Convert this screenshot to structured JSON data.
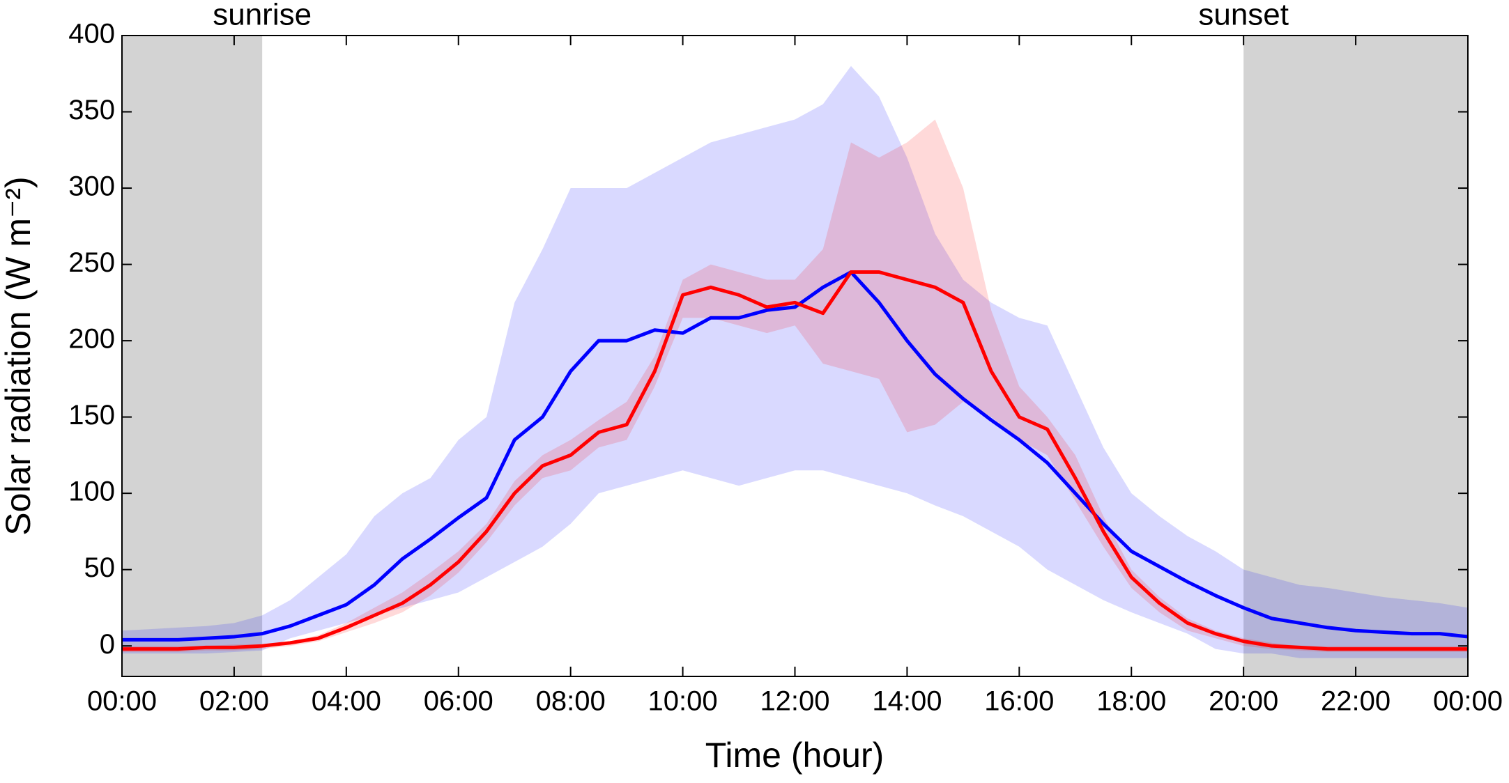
{
  "chart_data": {
    "type": "line",
    "xlabel": "Time (hour)",
    "ylabel": "Solar radiation (W m⁻²)",
    "xlim": [
      0,
      24
    ],
    "ylim": [
      -20,
      400
    ],
    "xticks": [
      {
        "value": 0,
        "label": "00:00"
      },
      {
        "value": 2,
        "label": "02:00"
      },
      {
        "value": 4,
        "label": "04:00"
      },
      {
        "value": 6,
        "label": "06:00"
      },
      {
        "value": 8,
        "label": "08:00"
      },
      {
        "value": 10,
        "label": "10:00"
      },
      {
        "value": 12,
        "label": "12:00"
      },
      {
        "value": 14,
        "label": "14:00"
      },
      {
        "value": 16,
        "label": "16:00"
      },
      {
        "value": 18,
        "label": "18:00"
      },
      {
        "value": 20,
        "label": "20:00"
      },
      {
        "value": 22,
        "label": "22:00"
      },
      {
        "value": 24,
        "label": "00:00"
      }
    ],
    "yticks": [
      0,
      50,
      100,
      150,
      200,
      250,
      300,
      350,
      400
    ],
    "shaded_regions": [
      {
        "x": [
          0,
          2.5
        ],
        "color": "#d3d3d3"
      },
      {
        "x": [
          20,
          24
        ],
        "color": "#d3d3d3"
      }
    ],
    "annotations": [
      {
        "text": "sunrise",
        "x": 2.5
      },
      {
        "text": "sunset",
        "x": 20
      }
    ],
    "x": [
      0,
      0.5,
      1,
      1.5,
      2,
      2.5,
      3,
      3.5,
      4,
      4.5,
      5,
      5.5,
      6,
      6.5,
      7,
      7.5,
      8,
      8.5,
      9,
      9.5,
      10,
      10.5,
      11,
      11.5,
      12,
      12.5,
      13,
      13.5,
      14,
      14.5,
      15,
      15.5,
      16,
      16.5,
      17,
      17.5,
      18,
      18.5,
      19,
      19.5,
      20,
      20.5,
      21,
      21.5,
      22,
      22.5,
      23,
      23.5,
      24
    ],
    "series": [
      {
        "color": "#0000ff",
        "band_color": "#0000ff",
        "values": [
          4,
          4,
          4,
          5,
          6,
          8,
          13,
          20,
          27,
          40,
          57,
          70,
          84,
          97,
          135,
          150,
          180,
          200,
          200,
          207,
          205,
          215,
          215,
          220,
          222,
          235,
          245,
          225,
          200,
          178,
          162,
          148,
          135,
          120,
          100,
          80,
          62,
          52,
          42,
          33,
          25,
          18,
          15,
          12,
          10,
          9,
          8,
          8,
          6
        ],
        "upper": [
          10,
          11,
          12,
          13,
          15,
          20,
          30,
          45,
          60,
          85,
          100,
          110,
          135,
          150,
          225,
          260,
          300,
          300,
          300,
          310,
          320,
          330,
          335,
          340,
          345,
          355,
          380,
          360,
          320,
          270,
          240,
          225,
          215,
          210,
          170,
          130,
          100,
          85,
          72,
          62,
          50,
          45,
          40,
          38,
          35,
          32,
          30,
          28,
          25
        ],
        "lower": [
          -5,
          -5,
          -5,
          -5,
          -4,
          -3,
          5,
          10,
          15,
          20,
          25,
          30,
          35,
          45,
          55,
          65,
          80,
          100,
          105,
          110,
          115,
          110,
          105,
          110,
          115,
          115,
          110,
          105,
          100,
          92,
          85,
          75,
          65,
          50,
          40,
          30,
          22,
          15,
          8,
          -2,
          -5,
          -5,
          -8,
          -8,
          -8,
          -8,
          -8,
          -8,
          -8
        ]
      },
      {
        "color": "#ff0000",
        "band_color": "#ff0000",
        "values": [
          -2,
          -2,
          -2,
          -1,
          -1,
          0,
          2,
          5,
          12,
          20,
          28,
          40,
          55,
          75,
          100,
          118,
          125,
          140,
          145,
          180,
          230,
          235,
          230,
          222,
          225,
          218,
          245,
          245,
          240,
          235,
          225,
          180,
          150,
          142,
          110,
          75,
          45,
          28,
          15,
          8,
          3,
          0,
          -1,
          -2,
          -2,
          -2,
          -2,
          -2,
          -2
        ],
        "upper": [
          0,
          0,
          0,
          0,
          1,
          1,
          3,
          7,
          15,
          25,
          35,
          48,
          62,
          80,
          108,
          125,
          135,
          148,
          160,
          190,
          240,
          250,
          245,
          240,
          240,
          260,
          330,
          320,
          330,
          345,
          300,
          220,
          170,
          150,
          125,
          85,
          50,
          32,
          18,
          10,
          5,
          2,
          0,
          0,
          0,
          0,
          0,
          0,
          0
        ],
        "lower": [
          -4,
          -4,
          -4,
          -3,
          -3,
          -2,
          0,
          3,
          9,
          15,
          22,
          33,
          48,
          68,
          92,
          110,
          115,
          130,
          135,
          170,
          215,
          215,
          210,
          205,
          210,
          185,
          180,
          175,
          140,
          145,
          160,
          150,
          135,
          125,
          95,
          65,
          38,
          22,
          10,
          5,
          0,
          -2,
          -3,
          -4,
          -4,
          -4,
          -4,
          -4,
          -4
        ]
      }
    ]
  }
}
